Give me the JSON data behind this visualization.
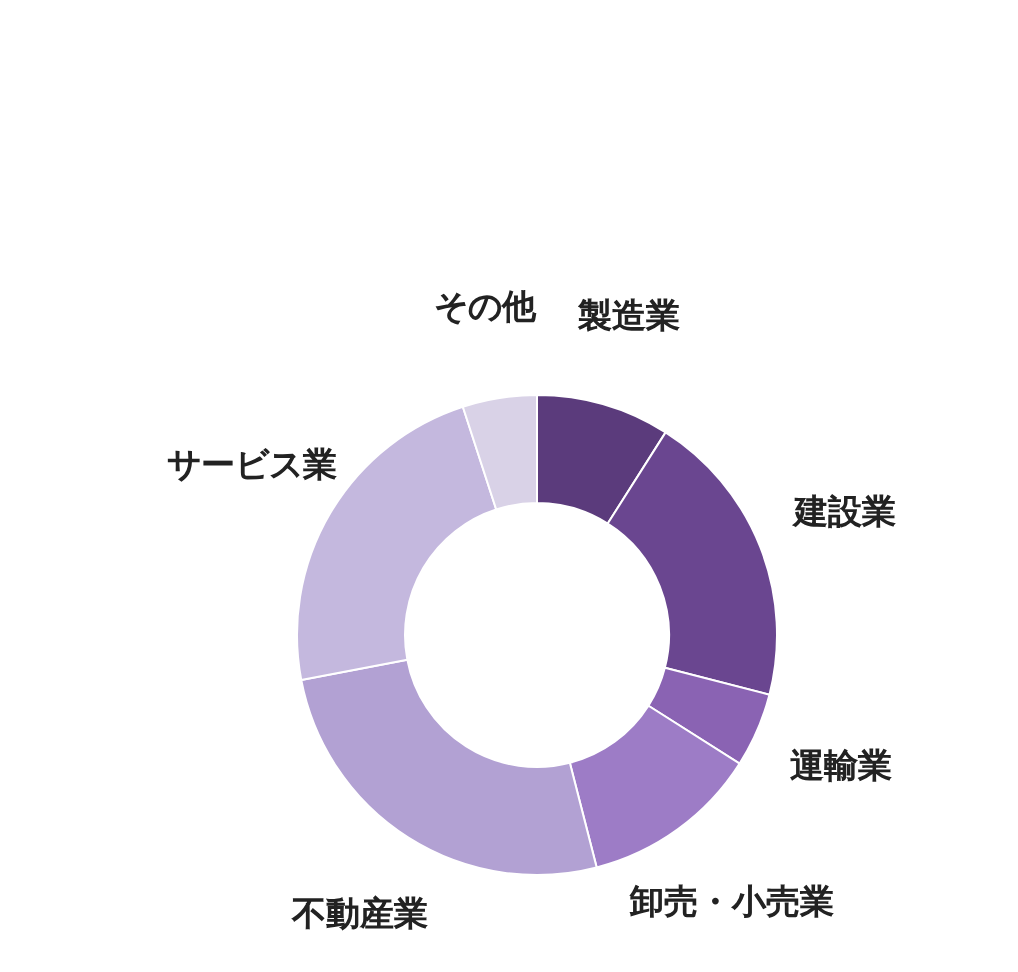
{
  "chart_data": {
    "type": "donut",
    "categories": [
      "製造業",
      "建設業",
      "運輸業",
      "卸売・小売業",
      "不動産業",
      "サービス業",
      "その他"
    ],
    "values": [
      9,
      20,
      5,
      12,
      26,
      23,
      5
    ],
    "colors": [
      "#5b3b7c",
      "#6a4690",
      "#8a63b3",
      "#9d7cc6",
      "#b2a1d3",
      "#c4b8de",
      "#d9d2e7"
    ]
  }
}
